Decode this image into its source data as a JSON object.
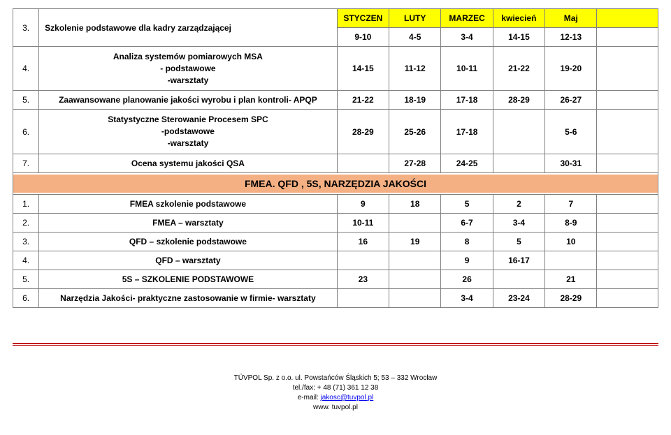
{
  "colors": {
    "header_bg": "#ffff00",
    "section_bg": "#f4b083",
    "border": "#808080",
    "rule": "#c00000",
    "link": "#0000ee"
  },
  "months": {
    "m1": "STYCZEN",
    "m2": "LUTY",
    "m3": "MARZEC",
    "m4": "kwiecień",
    "m5": "Maj"
  },
  "top_rows": [
    {
      "num": "3.",
      "desc": "Szkolenie podstawowe dla kadry zarządzającej",
      "header_vals": [
        "9-10",
        "4-5",
        "3-4",
        "14-15",
        "12-13"
      ]
    },
    {
      "num": "4.",
      "desc": "Analiza systemów pomiarowych MSA\n- podstawowe\n-warsztaty",
      "vals": [
        "14-15",
        "11-12",
        "10-11",
        "21-22",
        "19-20",
        ""
      ]
    },
    {
      "num": "5.",
      "desc": "Zaawansowane planowanie jakości wyrobu i plan kontroli- APQP",
      "vals": [
        "21-22",
        "18-19",
        "17-18",
        "28-29",
        "26-27",
        ""
      ]
    },
    {
      "num": "6.",
      "desc": "Statystyczne Sterowanie Procesem SPC\n-podstawowe\n-warsztaty",
      "vals": [
        "28-29",
        "25-26",
        "17-18",
        "",
        "5-6",
        ""
      ]
    },
    {
      "num": "7.",
      "desc": "Ocena systemu jakości QSA",
      "vals": [
        "",
        "27-28",
        "24-25",
        "",
        "30-31",
        ""
      ]
    }
  ],
  "section_title": "FMEA. QFD , 5S, NARZĘDZIA JAKOŚCI",
  "bottom_rows": [
    {
      "num": "1.",
      "desc": "FMEA szkolenie podstawowe",
      "vals": [
        "9",
        "18",
        "5",
        "2",
        "7",
        ""
      ]
    },
    {
      "num": "2.",
      "desc": "FMEA – warsztaty",
      "vals": [
        "10-11",
        "",
        "6-7",
        "3-4",
        "8-9",
        ""
      ]
    },
    {
      "num": "3.",
      "desc": "QFD – szkolenie podstawowe",
      "vals": [
        "16",
        "19",
        "8",
        "5",
        "10",
        ""
      ]
    },
    {
      "num": "4.",
      "desc": "QFD – warsztaty",
      "vals": [
        "",
        "",
        "9",
        "16-17",
        "",
        ""
      ]
    },
    {
      "num": "5.",
      "desc": "5S – SZKOLENIE PODSTAWOWE",
      "vals": [
        "23",
        "",
        "26",
        "",
        "21",
        ""
      ]
    },
    {
      "num": "6.",
      "desc": "Narzędzia Jakości- praktyczne zastosowanie w firmie- warsztaty",
      "vals": [
        "",
        "",
        "3-4",
        "23-24",
        "28-29",
        ""
      ]
    }
  ],
  "footer": {
    "line1": "TÜVPOL Sp. z o.o. ul. Powstańców Śląskich 5; 53 – 332 Wrocław",
    "line2_pre": "tel./fax: + 48 (71) 361 12 38",
    "line3_pre": "e-mail: ",
    "email": "jakosc@tuvpol.pl",
    "line4": "www. tuvpol.pl"
  }
}
